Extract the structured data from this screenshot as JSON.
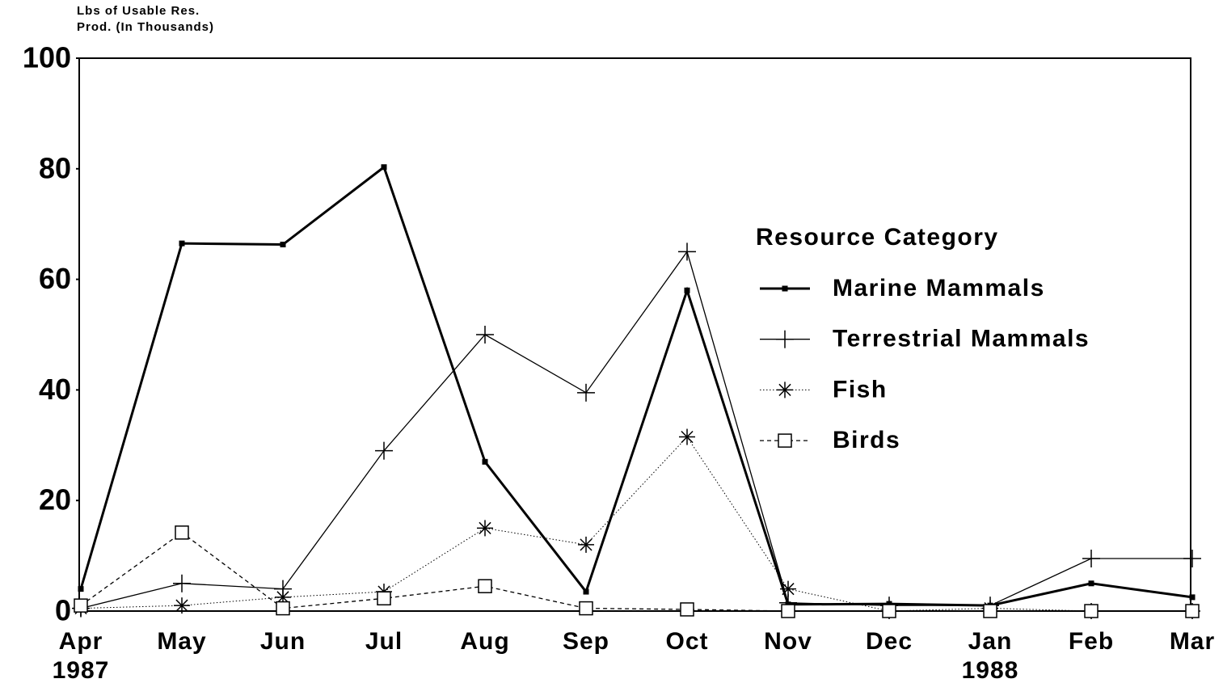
{
  "chart_data": {
    "type": "line",
    "y_label_lines": [
      "Lbs of Usable Res.",
      "Prod. (In Thousands)"
    ],
    "legend_title": "Resource Category",
    "categories": [
      "Apr",
      "May",
      "Jun",
      "Jul",
      "Aug",
      "Sep",
      "Oct",
      "Nov",
      "Dec",
      "Jan",
      "Feb",
      "Mar"
    ],
    "year_labels": [
      "1987",
      null,
      null,
      null,
      null,
      null,
      null,
      null,
      null,
      "1988",
      null,
      null
    ],
    "ylim": [
      0,
      100
    ],
    "yticks": [
      0,
      20,
      40,
      60,
      80,
      100
    ],
    "grid": false,
    "legend": "right",
    "series": [
      {
        "name": "Marine Mammals",
        "color": "#000000",
        "style": "solid-thick",
        "marker": "small-square",
        "values": [
          4,
          66.5,
          66.3,
          80.3,
          27,
          3.5,
          58,
          1.2,
          1.3,
          1,
          5,
          2.5
        ]
      },
      {
        "name": "Terrestrial Mammals",
        "color": "#000000",
        "style": "solid",
        "marker": "plus",
        "values": [
          0.5,
          5,
          4,
          29,
          50,
          39.5,
          65,
          1.5,
          1,
          1,
          9.5,
          9.5
        ]
      },
      {
        "name": "Fish",
        "color": "#000000",
        "style": "dotted",
        "marker": "asterisk",
        "values": [
          0.5,
          1,
          2.5,
          3.5,
          15,
          12,
          31.5,
          4,
          0,
          0.5,
          0,
          0
        ]
      },
      {
        "name": "Birds",
        "color": "#000000",
        "style": "dashed",
        "marker": "open-square",
        "values": [
          1,
          14.2,
          0.5,
          2.3,
          4.5,
          0.5,
          0.3,
          0,
          0,
          0,
          0,
          0
        ]
      }
    ]
  }
}
